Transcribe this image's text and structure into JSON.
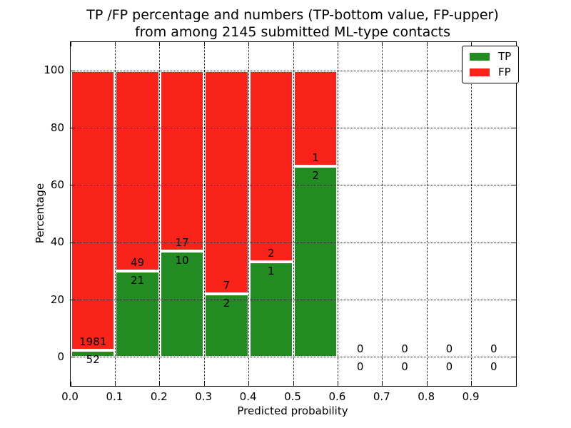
{
  "figure": {
    "title_line1": "TP /FP percentage and numbers (TP-bottom value, FP-upper)",
    "title_line2": "from among 2145 submitted ML-type contacts"
  },
  "chart_data": {
    "type": "bar",
    "stacked": true,
    "title": "TP /FP percentage and numbers (TP-bottom value, FP-upper)\nfrom among 2145 submitted ML-type contacts",
    "subtitle_total_contacts": 2145,
    "xlabel": "Predicted probability",
    "ylabel": "Percentage",
    "xlim": [
      0.0,
      1.0
    ],
    "ylim": [
      -10,
      110
    ],
    "x_ticks": [
      "0.0",
      "0.1",
      "0.2",
      "0.3",
      "0.4",
      "0.5",
      "0.6",
      "0.7",
      "0.8",
      "0.9"
    ],
    "y_ticks": [
      "0",
      "20",
      "40",
      "60",
      "80",
      "100"
    ],
    "grid": true,
    "grid_style": "dotted",
    "legend_position": "upper right",
    "legend": [
      {
        "label": "TP",
        "color": "#228b22"
      },
      {
        "label": "FP",
        "color": "#f9231a"
      }
    ],
    "colors": {
      "tp": "#228b22",
      "fp": "#f9231a",
      "bar_edge": "#ffffff"
    },
    "series": [
      {
        "name": "TP",
        "values": [
          52,
          21,
          10,
          2,
          1,
          2,
          0,
          0,
          0,
          0
        ]
      },
      {
        "name": "FP",
        "values": [
          1981,
          49,
          17,
          7,
          2,
          1,
          0,
          0,
          0,
          0
        ]
      }
    ],
    "bins": [
      {
        "x_start": 0.0,
        "x_end": 0.1,
        "tp": 52,
        "fp": 1981,
        "tp_pct": 2.56,
        "fp_pct": 97.44
      },
      {
        "x_start": 0.1,
        "x_end": 0.2,
        "tp": 21,
        "fp": 49,
        "tp_pct": 30.0,
        "fp_pct": 70.0
      },
      {
        "x_start": 0.2,
        "x_end": 0.3,
        "tp": 10,
        "fp": 17,
        "tp_pct": 37.04,
        "fp_pct": 62.96
      },
      {
        "x_start": 0.3,
        "x_end": 0.4,
        "tp": 2,
        "fp": 7,
        "tp_pct": 22.22,
        "fp_pct": 77.78
      },
      {
        "x_start": 0.4,
        "x_end": 0.5,
        "tp": 1,
        "fp": 2,
        "tp_pct": 33.33,
        "fp_pct": 66.67
      },
      {
        "x_start": 0.5,
        "x_end": 0.6,
        "tp": 2,
        "fp": 1,
        "tp_pct": 66.67,
        "fp_pct": 33.33
      },
      {
        "x_start": 0.6,
        "x_end": 0.7,
        "tp": 0,
        "fp": 0,
        "tp_pct": 0,
        "fp_pct": 0
      },
      {
        "x_start": 0.7,
        "x_end": 0.8,
        "tp": 0,
        "fp": 0,
        "tp_pct": 0,
        "fp_pct": 0
      },
      {
        "x_start": 0.8,
        "x_end": 0.9,
        "tp": 0,
        "fp": 0,
        "tp_pct": 0,
        "fp_pct": 0
      },
      {
        "x_start": 0.9,
        "x_end": 1.0,
        "tp": 0,
        "fp": 0,
        "tp_pct": 0,
        "fp_pct": 0
      }
    ]
  }
}
